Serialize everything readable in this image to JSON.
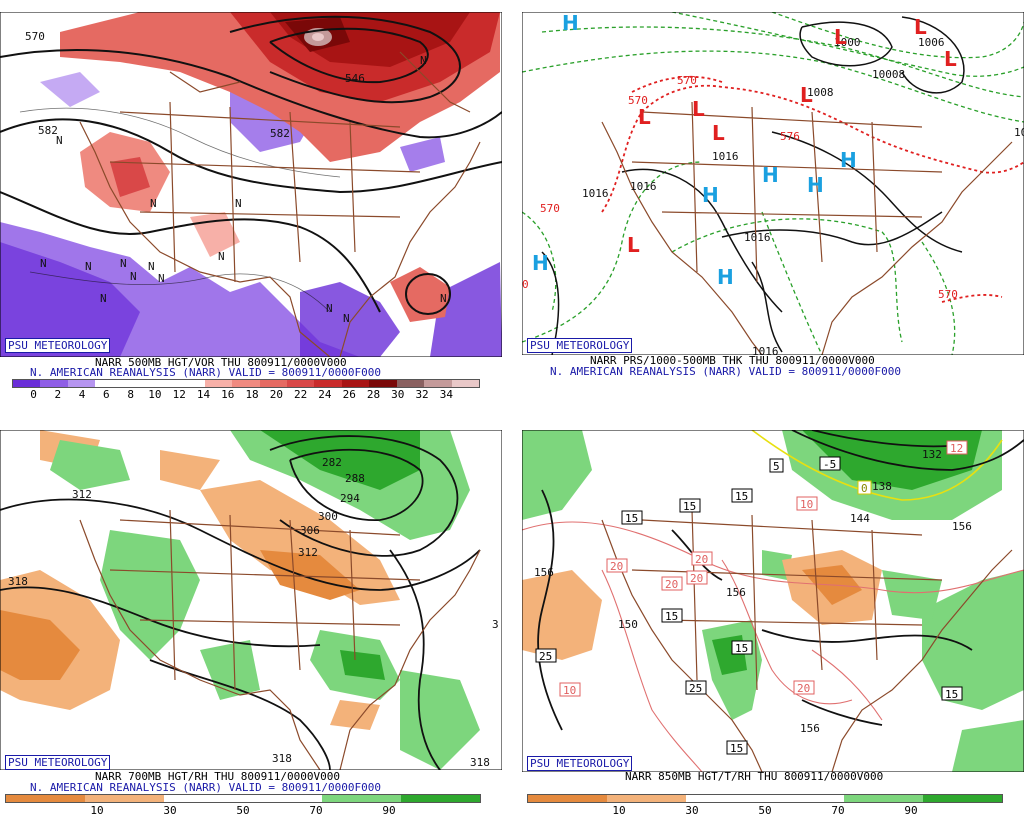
{
  "branding": "PSU METEOROLOGY",
  "panels": {
    "tl": {
      "line1": "NARR 500MB HGT/VOR THU 800911/0000V000",
      "line2": "N. AMERICAN REANALYSIS (NARR) VALID = 800911/0000F000",
      "colorbar": {
        "labels": [
          "0",
          "2",
          "4",
          "6",
          "8",
          "10",
          "12",
          "14",
          "16",
          "18",
          "20",
          "22",
          "24",
          "26",
          "28",
          "30",
          "32",
          "34"
        ],
        "colors": [
          "#6a2ed8",
          "#8f5ee6",
          "#b695f0",
          "#ffffff",
          "#ffffff",
          "#ffffff",
          "#ffffff",
          "#f7b0a8",
          "#ef8a80",
          "#e56a62",
          "#d94848",
          "#c92b2b",
          "#a81414",
          "#7a0808",
          "#8a6060",
          "#c49a9a",
          "#e9c8c8"
        ]
      },
      "contour_labels": [
        "570",
        "582",
        "546",
        "582"
      ],
      "map_labels": [
        "N",
        "N",
        "N",
        "N",
        "N",
        "N",
        "N",
        "N",
        "N",
        "N",
        "N",
        "N",
        "N",
        "N",
        "N"
      ]
    },
    "tr": {
      "line1": "NARR PRS/1000-500MB THK THU 800911/0000V000",
      "line2": "N. AMERICAN REANALYSIS (NARR) VALID = 800911/0000F000",
      "contour_labels": [
        "1000",
        "10008",
        "1008",
        "1006",
        "1016",
        "1016",
        "1016",
        "1016",
        "1016",
        "570",
        "570",
        "576",
        "570",
        "570",
        "10",
        "0"
      ],
      "highs": [
        "H",
        "H",
        "H",
        "H",
        "H",
        "H",
        "H"
      ],
      "lows": [
        "L",
        "L",
        "L",
        "L",
        "L",
        "L",
        "L",
        "L"
      ]
    },
    "bl": {
      "line1": "NARR 700MB HGT/RH THU 800911/0000V000",
      "line2": "N. AMERICAN REANALYSIS (NARR) VALID = 800911/0000F000",
      "colorbar": {
        "labels": [
          "10",
          "30",
          "50",
          "70",
          "90"
        ],
        "colors": [
          "#e58a3e",
          "#f3b27a",
          "#ffffff",
          "#ffffff",
          "#7dd67d",
          "#2ea82e"
        ]
      },
      "contour_labels": [
        "312",
        "318",
        "282",
        "288",
        "294",
        "300",
        "306",
        "312",
        "318",
        "318",
        "3"
      ]
    },
    "br": {
      "line1": "NARR 850MB HGT/T/RH THU 800911/0000V000",
      "colorbar": {
        "labels": [
          "10",
          "30",
          "50",
          "70",
          "90"
        ],
        "colors": [
          "#e58a3e",
          "#f3b27a",
          "#ffffff",
          "#ffffff",
          "#7dd67d",
          "#2ea82e"
        ]
      },
      "contour_labels": [
        "156",
        "150",
        "156",
        "138",
        "144",
        "132",
        "156",
        "156"
      ],
      "temp_boxes": [
        "5",
        "-5",
        "0",
        "15",
        "15",
        "15",
        "10",
        "20",
        "20",
        "20",
        "20",
        "15",
        "15",
        "25",
        "25",
        "15",
        "15",
        "10",
        "20",
        "12"
      ]
    }
  },
  "colors": {
    "border": "#8b4a2b",
    "contour": "#111111",
    "caption_blue": "#1a1aa8",
    "low_red": "#e02020",
    "high_blue": "#1aa0e0",
    "thickness_red": "#e02020",
    "thickness_green": "#2aa02a"
  }
}
